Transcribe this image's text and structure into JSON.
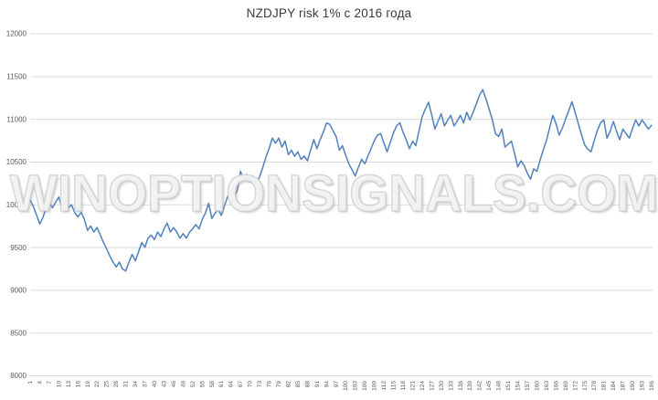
{
  "header": {
    "title": "NZDJPY risk 1% с 2016 года"
  },
  "watermark": {
    "text": "WINOPTIONSIGNALS.COM"
  },
  "colors": {
    "line": "#4f81bd",
    "gridline": "#d9d9d9",
    "axis_text": "#595959",
    "title_text": "#3a3a3a",
    "background": "#ffffff"
  },
  "chart_data": {
    "type": "line",
    "title": "NZDJPY risk 1% с 2016 года",
    "xlabel": "",
    "ylabel": "",
    "legend": "none",
    "grid": "horizontal",
    "ylim": [
      8000,
      12000
    ],
    "y_ticks": [
      8000,
      8500,
      9000,
      9500,
      10000,
      10500,
      11000,
      11500,
      12000
    ],
    "x_start": 1,
    "x_count": 196,
    "x_tick_step": 3,
    "x_tick_labels": [
      1,
      4,
      7,
      10,
      13,
      16,
      19,
      22,
      25,
      28,
      31,
      34,
      37,
      40,
      43,
      46,
      49,
      52,
      55,
      58,
      61,
      64,
      67,
      70,
      73,
      76,
      79,
      82,
      85,
      88,
      91,
      94,
      97,
      100,
      103,
      106,
      109,
      112,
      115,
      118,
      121,
      124,
      127,
      130,
      133,
      136,
      139,
      142,
      145,
      148,
      151,
      154,
      157,
      160,
      163,
      166,
      169,
      172,
      175,
      178,
      181,
      184,
      187,
      190,
      193,
      196
    ],
    "series": [
      {
        "name": "NZDJPY",
        "values": [
          10055,
          9980,
          9880,
          9775,
          9850,
          9960,
          10020,
          9965,
          10030,
          10090,
          9950,
          10055,
          9965,
          10000,
          9905,
          9858,
          9912,
          9830,
          9700,
          9752,
          9681,
          9734,
          9650,
          9560,
          9486,
          9400,
          9330,
          9273,
          9330,
          9250,
          9225,
          9330,
          9420,
          9345,
          9450,
          9557,
          9504,
          9610,
          9646,
          9593,
          9681,
          9628,
          9720,
          9787,
          9681,
          9734,
          9681,
          9610,
          9663,
          9610,
          9680,
          9720,
          9769,
          9717,
          9830,
          9905,
          10018,
          9840,
          9900,
          9947,
          9876,
          9990,
          10100,
          10179,
          10090,
          10170,
          10392,
          10285,
          10355,
          10268,
          10330,
          10250,
          10330,
          10440,
          10560,
          10660,
          10780,
          10720,
          10780,
          10674,
          10745,
          10585,
          10638,
          10567,
          10620,
          10532,
          10570,
          10514,
          10640,
          10762,
          10656,
          10760,
          10850,
          10957,
          10940,
          10870,
          10798,
          10638,
          10691,
          10580,
          10480,
          10410,
          10337,
          10440,
          10532,
          10479,
          10570,
          10660,
          10750,
          10816,
          10833,
          10720,
          10620,
          10730,
          10840,
          10922,
          10960,
          10850,
          10760,
          10656,
          10745,
          10691,
          10860,
          11028,
          11120,
          11200,
          11050,
          10886,
          10980,
          11064,
          10922,
          10990,
          11046,
          10922,
          10980,
          11046,
          10957,
          11082,
          10993,
          11080,
          11180,
          11280,
          11347,
          11240,
          11120,
          11000,
          10833,
          10798,
          10886,
          10674,
          10710,
          10745,
          10600,
          10443,
          10514,
          10460,
          10370,
          10301,
          10420,
          10390,
          10520,
          10640,
          10750,
          10900,
          11046,
          10950,
          10816,
          10900,
          11000,
          11100,
          11205,
          11080,
          10950,
          10820,
          10700,
          10650,
          10620,
          10750,
          10870,
          10960,
          10993,
          10780,
          10860,
          10975,
          10860,
          10762,
          10886,
          10830,
          10780,
          10890,
          10993,
          10922,
          10993,
          10940,
          10886,
          10930
        ]
      }
    ]
  }
}
